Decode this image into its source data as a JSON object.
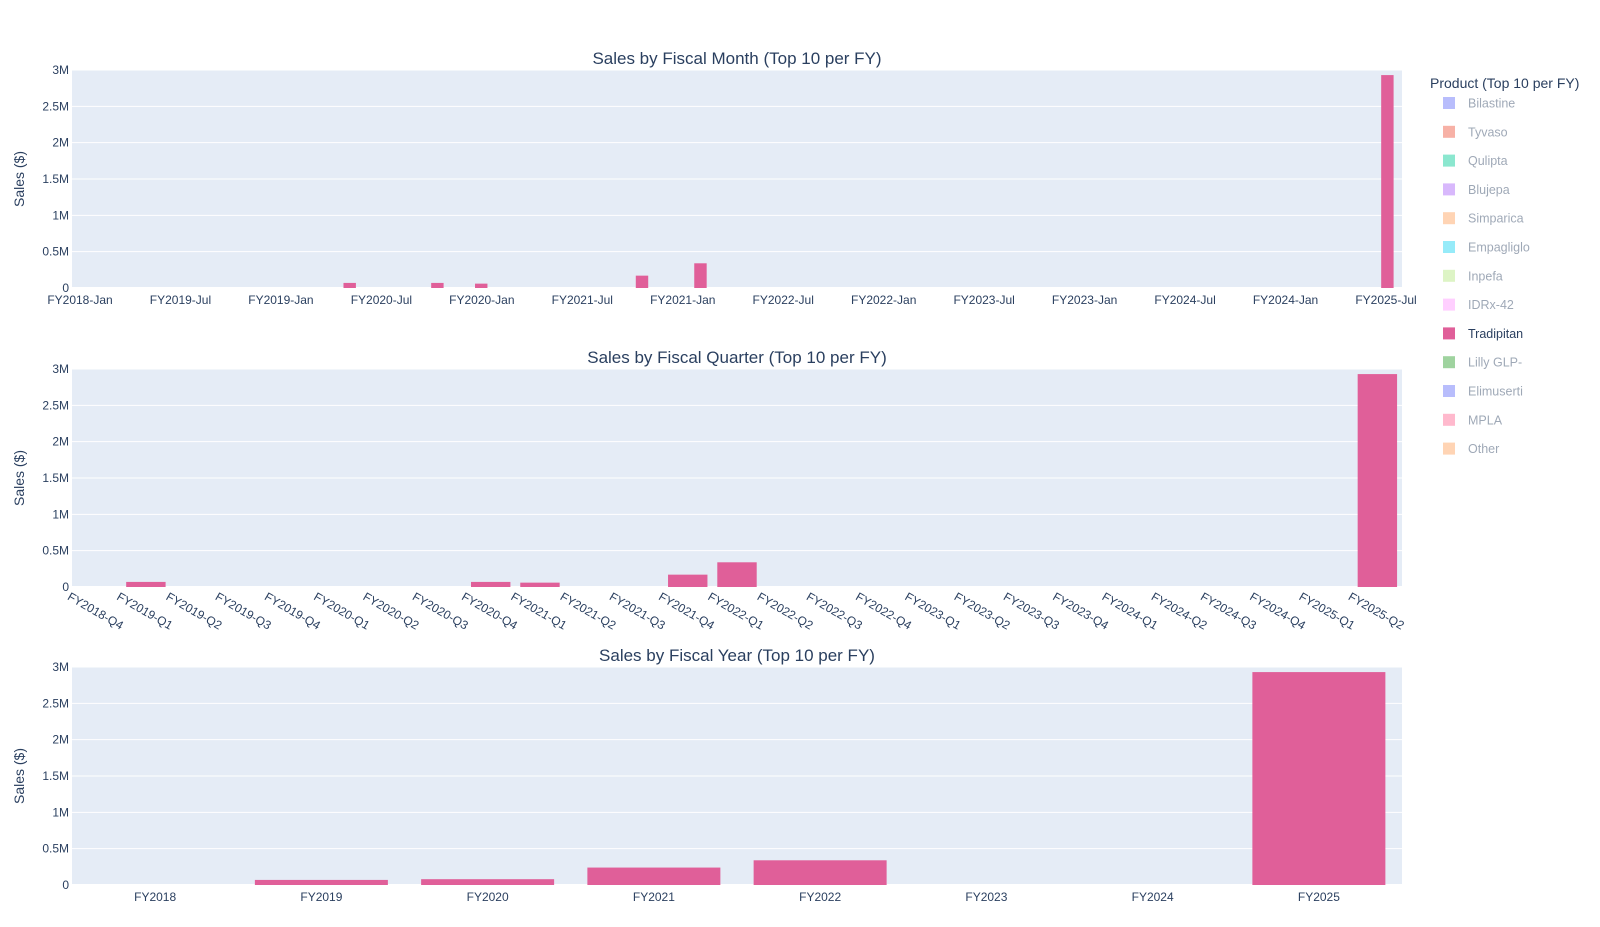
{
  "legend": {
    "title": "Product (Top 10 per FY)",
    "active": "Tradipitan",
    "items": [
      {
        "name": "Bilastine",
        "color": "#636efa"
      },
      {
        "name": "Tyvaso",
        "color": "#ef553b"
      },
      {
        "name": "Qulipta",
        "color": "#00cc96"
      },
      {
        "name": "Blujepa",
        "color": "#ab63fa"
      },
      {
        "name": "Simparica",
        "color": "#ffa15a"
      },
      {
        "name": "Empagliglo",
        "color": "#19d3f3"
      },
      {
        "name": "Inpefa",
        "color": "#b6e880"
      },
      {
        "name": "IDRx-42",
        "color": "#ff97ff"
      },
      {
        "name": "Tradipitan",
        "color": "#e05f99"
      },
      {
        "name": "Lilly GLP-",
        "color": "#2ca02c"
      },
      {
        "name": "Elimuserti",
        "color": "#636efa"
      },
      {
        "name": "MPLA",
        "color": "#ff6692"
      },
      {
        "name": "Other",
        "color": "#ffa15a"
      }
    ]
  },
  "chart_data": [
    {
      "type": "bar",
      "title": "Sales by Fiscal Month (Top 10 per FY)",
      "ylabel": "Sales ($)",
      "xlabel": "",
      "ylim": [
        0,
        3000000
      ],
      "yticks": [
        0,
        500000,
        1000000,
        1500000,
        2000000,
        2500000,
        3000000
      ],
      "ytick_labels": [
        "0",
        "0.5M",
        "1M",
        "1.5M",
        "2M",
        "2.5M",
        "3M"
      ],
      "xdomain": [
        "FY2018-Jan",
        "FY2025-Aug"
      ],
      "xtick_labels": [
        "FY2018-Jan",
        "FY2019-Jul",
        "FY2019-Jan",
        "FY2020-Jul",
        "FY2020-Jan",
        "FY2021-Jul",
        "FY2021-Jan",
        "FY2022-Jul",
        "FY2022-Jan",
        "FY2023-Jul",
        "FY2023-Jan",
        "FY2024-Jul",
        "FY2024-Jan",
        "FY2025-Jul"
      ],
      "grid": true,
      "series": [
        {
          "name": "Tradipitan",
          "color": "#e05f99",
          "x": [
            "FY2019-Aug",
            "FY2020-Feb",
            "FY2020-May",
            "FY2021-Apr",
            "FY2021-Aug",
            "FY2025-Jul"
          ],
          "values": [
            70000,
            70000,
            60000,
            170000,
            340000,
            2930000
          ]
        }
      ]
    },
    {
      "type": "bar",
      "title": "Sales by Fiscal Quarter (Top 10 per FY)",
      "ylabel": "Sales ($)",
      "xlabel": "",
      "ylim": [
        0,
        3000000
      ],
      "yticks": [
        0,
        500000,
        1000000,
        1500000,
        2000000,
        2500000,
        3000000
      ],
      "ytick_labels": [
        "0",
        "0.5M",
        "1M",
        "1.5M",
        "2M",
        "2.5M",
        "3M"
      ],
      "categories": [
        "FY2018-Q4",
        "FY2019-Q1",
        "FY2019-Q2",
        "FY2019-Q3",
        "FY2019-Q4",
        "FY2020-Q1",
        "FY2020-Q2",
        "FY2020-Q3",
        "FY2020-Q4",
        "FY2021-Q1",
        "FY2021-Q2",
        "FY2021-Q3",
        "FY2021-Q4",
        "FY2022-Q1",
        "FY2022-Q2",
        "FY2022-Q3",
        "FY2022-Q4",
        "FY2023-Q1",
        "FY2023-Q2",
        "FY2023-Q3",
        "FY2023-Q4",
        "FY2024-Q1",
        "FY2024-Q2",
        "FY2024-Q3",
        "FY2024-Q4",
        "FY2025-Q1",
        "FY2025-Q2"
      ],
      "grid": true,
      "series": [
        {
          "name": "Tradipitan",
          "color": "#e05f99",
          "values": [
            0,
            70000,
            0,
            0,
            0,
            0,
            0,
            0,
            70000,
            60000,
            0,
            0,
            170000,
            340000,
            0,
            0,
            0,
            0,
            0,
            0,
            0,
            0,
            0,
            0,
            0,
            0,
            2930000
          ]
        }
      ]
    },
    {
      "type": "bar",
      "title": "Sales by Fiscal Year (Top 10 per FY)",
      "ylabel": "Sales ($)",
      "xlabel": "",
      "ylim": [
        0,
        3000000
      ],
      "yticks": [
        0,
        500000,
        1000000,
        1500000,
        2000000,
        2500000,
        3000000
      ],
      "ytick_labels": [
        "0",
        "0.5M",
        "1M",
        "1.5M",
        "2M",
        "2.5M",
        "3M"
      ],
      "categories": [
        "FY2018",
        "FY2019",
        "FY2020",
        "FY2021",
        "FY2022",
        "FY2023",
        "FY2024",
        "FY2025"
      ],
      "grid": true,
      "series": [
        {
          "name": "Tradipitan",
          "color": "#e05f99",
          "values": [
            0,
            70000,
            80000,
            240000,
            340000,
            0,
            0,
            2930000
          ]
        }
      ]
    }
  ]
}
